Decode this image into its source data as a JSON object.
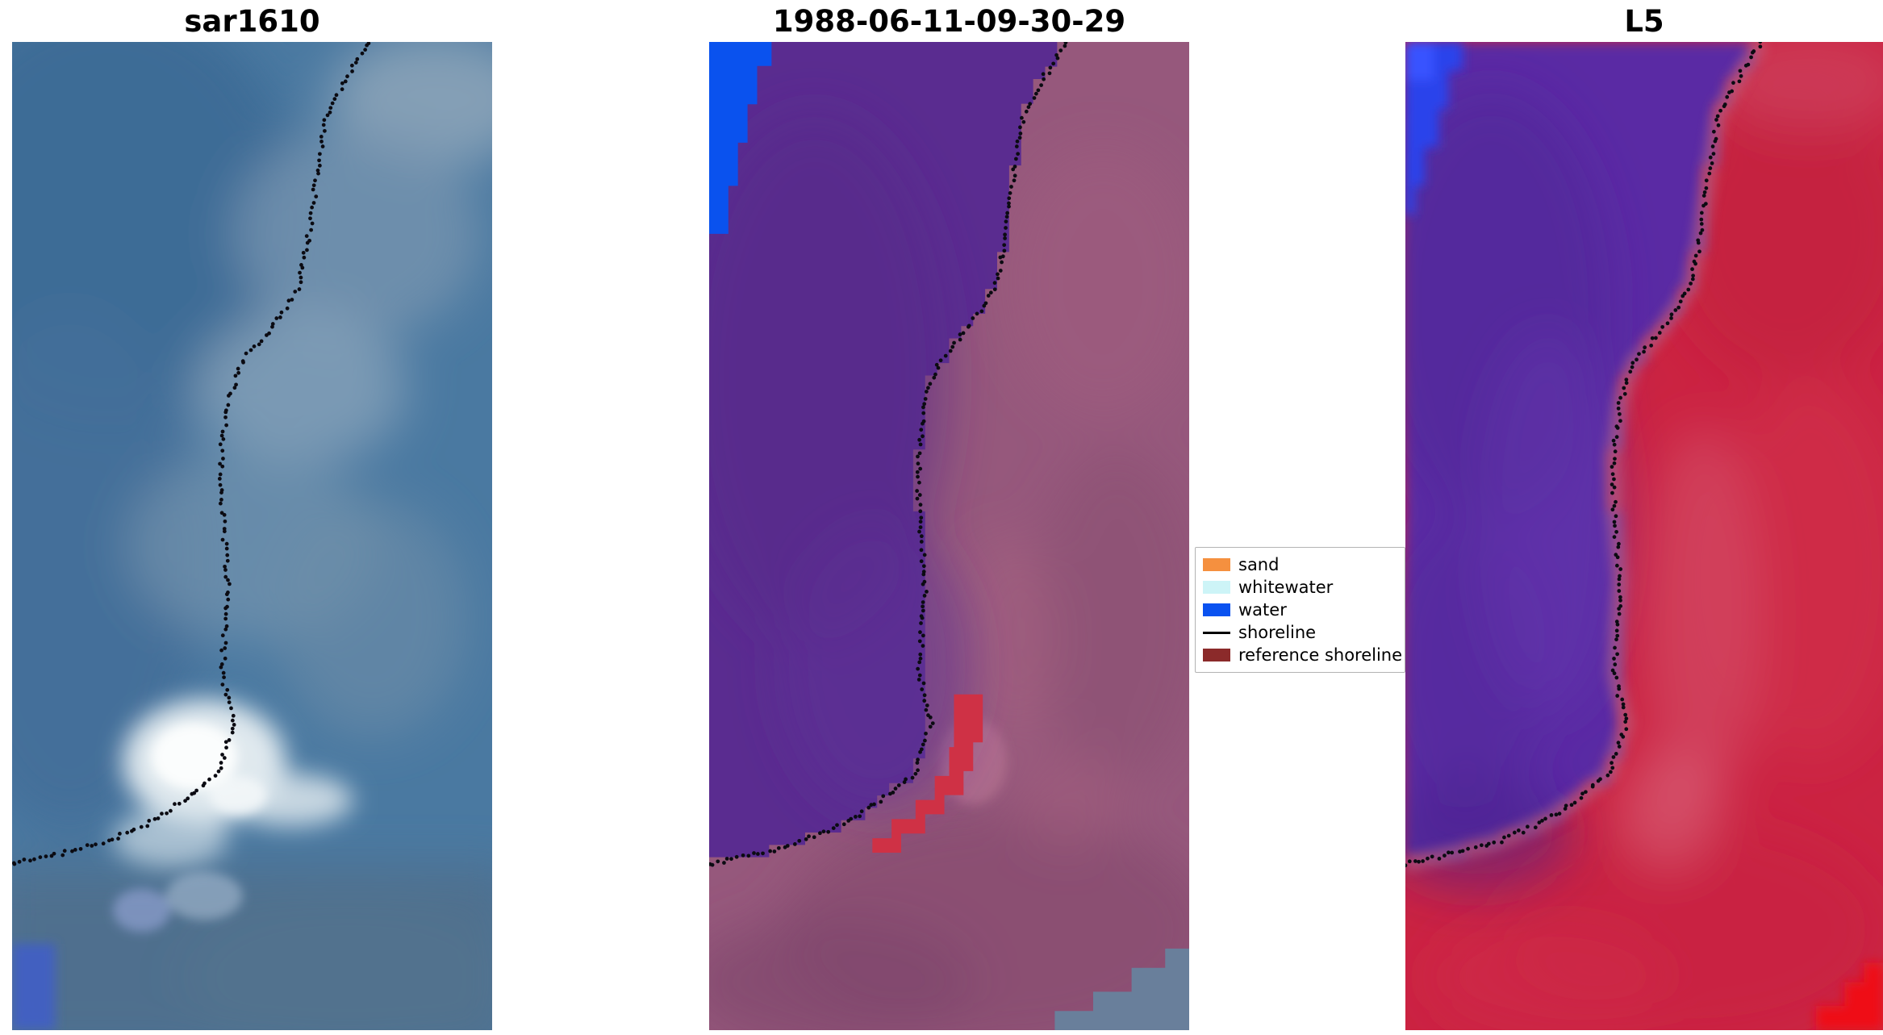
{
  "figure": {
    "background_color": "#ffffff"
  },
  "chart_data": {
    "type": "image",
    "description": "Three co-registered coastal satellite image panels with a detected shoreline overlaid as small black dots; classification legend between panels 2 and 3",
    "panels": [
      {
        "title": "sar1610",
        "kind": "SAR backscatter composite",
        "water_color": "#4a79a1",
        "land_color": "#7b98b1"
      },
      {
        "title": "1988-06-11-09-30-29",
        "kind": "classified optical scene",
        "water_color": "#5a2c90",
        "land_color": "#96587c"
      },
      {
        "title": "L5",
        "kind": "false-color Landsat 5 scene",
        "water_color": "#5a2ba4",
        "land_color": "#cb2342"
      }
    ],
    "shoreline_points": [
      [
        0.745,
        0.0
      ],
      [
        0.705,
        0.03
      ],
      [
        0.655,
        0.075
      ],
      [
        0.635,
        0.135
      ],
      [
        0.615,
        0.205
      ],
      [
        0.595,
        0.25
      ],
      [
        0.54,
        0.29
      ],
      [
        0.478,
        0.325
      ],
      [
        0.452,
        0.36
      ],
      [
        0.435,
        0.42
      ],
      [
        0.438,
        0.48
      ],
      [
        0.45,
        0.545
      ],
      [
        0.443,
        0.59
      ],
      [
        0.438,
        0.64
      ],
      [
        0.462,
        0.69
      ],
      [
        0.428,
        0.74
      ],
      [
        0.365,
        0.765
      ],
      [
        0.288,
        0.79
      ],
      [
        0.188,
        0.81
      ],
      [
        0.112,
        0.82
      ],
      [
        0.036,
        0.828
      ],
      [
        0.0,
        0.832
      ]
    ],
    "shoreline_marker_color": "#0b0b12",
    "legend_position": "center-right, between panel 2 and panel 3"
  },
  "legend": {
    "items": [
      {
        "label": "sand",
        "color": "#f5903f",
        "swatch": "patch"
      },
      {
        "label": "whitewater",
        "color": "#cdf4f7",
        "swatch": "patch"
      },
      {
        "label": "water",
        "color": "#0a52f0",
        "swatch": "patch"
      },
      {
        "label": "shoreline",
        "color": "#000000",
        "swatch": "line"
      },
      {
        "label": "reference shoreline",
        "color": "#8b2a2a",
        "swatch": "patch"
      }
    ]
  }
}
